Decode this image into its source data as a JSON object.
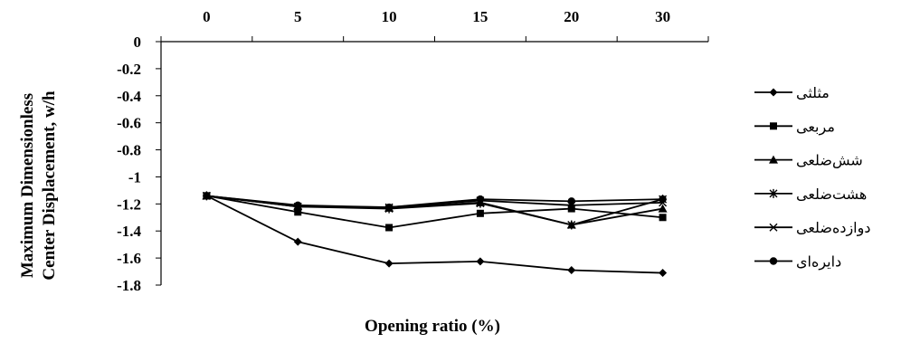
{
  "chart_data": {
    "type": "line",
    "title": "",
    "xlabel": "Opening ratio (%)",
    "ylabel_lines": [
      "Maximum Dimensionless",
      "Center Displacement, w/h"
    ],
    "x_categories": [
      "0",
      "5",
      "10",
      "15",
      "20",
      "30"
    ],
    "y_ticks": [
      "0",
      "-0.2",
      "-0.4",
      "-0.6",
      "-0.8",
      "-1",
      "-1.2",
      "-1.4",
      "-1.6",
      "-1.8"
    ],
    "ylim": [
      -1.8,
      0
    ],
    "x_axis_position": "top",
    "grid": false,
    "legend_position": "right",
    "series": [
      {
        "name": "مثلثی",
        "marker": "diamond",
        "values": [
          -1.14,
          -1.48,
          -1.64,
          -1.625,
          -1.69,
          -1.71
        ]
      },
      {
        "name": "مربعی",
        "marker": "square",
        "values": [
          -1.14,
          -1.26,
          -1.375,
          -1.27,
          -1.235,
          -1.3
        ]
      },
      {
        "name": "شش‌ضلعی",
        "marker": "triangle",
        "values": [
          -1.14,
          -1.215,
          -1.23,
          -1.19,
          -1.355,
          -1.235
        ]
      },
      {
        "name": "هشت‌ضلعی",
        "marker": "asterisk",
        "values": [
          -1.14,
          -1.22,
          -1.235,
          -1.195,
          -1.355,
          -1.165
        ]
      },
      {
        "name": "دوازده‌ضلعی",
        "marker": "x",
        "values": [
          -1.14,
          -1.22,
          -1.225,
          -1.175,
          -1.21,
          -1.19
        ]
      },
      {
        "name": "دایره‌ای",
        "marker": "circle",
        "values": [
          -1.14,
          -1.21,
          -1.225,
          -1.165,
          -1.18,
          -1.165
        ]
      }
    ]
  }
}
